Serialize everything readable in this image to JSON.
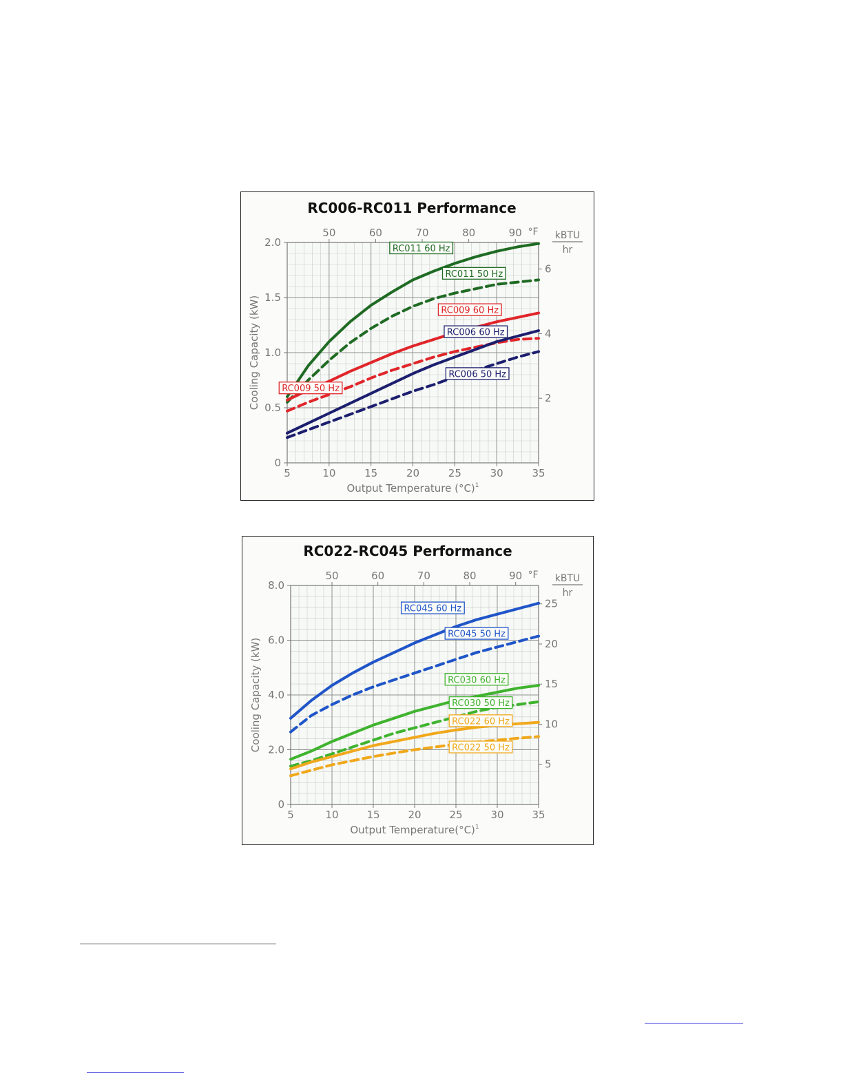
{
  "chart_data": [
    {
      "type": "line",
      "title": "RC006-RC011 Performance",
      "xlabel": "Output Temperature (°C)",
      "xlabel_superscript": "1",
      "ylabel": "Cooling Capacity (kW)",
      "xlim": [
        5,
        35
      ],
      "ylim": [
        0,
        2.0
      ],
      "x_ticks": [
        5,
        10,
        15,
        20,
        25,
        30,
        35
      ],
      "y_ticks": [
        0,
        0.5,
        1.0,
        1.5,
        2.0
      ],
      "y_tick_labels": [
        "0",
        "0.5",
        "1.0",
        "1.5",
        "2.0"
      ],
      "top_axis": {
        "unit": "°F",
        "ticks": [
          50,
          60,
          70,
          80,
          90
        ]
      },
      "right_axis": {
        "unit_top": "kBTU",
        "unit_bottom": "hr",
        "ticks": [
          2,
          4,
          6
        ]
      },
      "grid": true,
      "x": [
        5,
        7.5,
        10,
        12.5,
        15,
        17.5,
        20,
        22.5,
        25,
        27.5,
        30,
        32.5,
        35
      ],
      "series": [
        {
          "name": "RC011 60 Hz",
          "style": "solid",
          "color": "#1f6b24",
          "values": [
            0.6,
            0.88,
            1.1,
            1.28,
            1.43,
            1.55,
            1.66,
            1.74,
            1.81,
            1.87,
            1.92,
            1.96,
            1.99
          ]
        },
        {
          "name": "RC011 50 Hz",
          "style": "dashed",
          "color": "#1f6b24",
          "values": [
            0.55,
            0.75,
            0.93,
            1.09,
            1.22,
            1.33,
            1.42,
            1.49,
            1.54,
            1.58,
            1.62,
            1.64,
            1.66
          ]
        },
        {
          "name": "RC009 60 Hz",
          "style": "solid",
          "color": "#e0262a",
          "values": [
            0.57,
            0.66,
            0.74,
            0.83,
            0.91,
            0.99,
            1.06,
            1.12,
            1.18,
            1.23,
            1.28,
            1.32,
            1.36
          ]
        },
        {
          "name": "RC009 50 Hz",
          "style": "dashed",
          "color": "#e0262a",
          "values": [
            0.47,
            0.55,
            0.62,
            0.69,
            0.77,
            0.84,
            0.9,
            0.96,
            1.01,
            1.05,
            1.09,
            1.12,
            1.13
          ]
        },
        {
          "name": "RC006 60 Hz",
          "style": "solid",
          "color": "#1c1f6e",
          "values": [
            0.27,
            0.36,
            0.45,
            0.54,
            0.63,
            0.72,
            0.81,
            0.89,
            0.96,
            1.03,
            1.1,
            1.15,
            1.2
          ]
        },
        {
          "name": "RC006 50 Hz",
          "style": "dashed",
          "color": "#1c1f6e",
          "values": [
            0.23,
            0.3,
            0.37,
            0.44,
            0.51,
            0.58,
            0.65,
            0.71,
            0.78,
            0.84,
            0.9,
            0.96,
            1.01
          ]
        }
      ],
      "labels": [
        {
          "series": "RC011 60 Hz",
          "x": 21.0,
          "y": 1.95
        },
        {
          "series": "RC011 50 Hz",
          "x": 27.3,
          "y": 1.72
        },
        {
          "series": "RC009 60 Hz",
          "x": 26.8,
          "y": 1.39
        },
        {
          "series": "RC006 60 Hz",
          "x": 27.5,
          "y": 1.19
        },
        {
          "series": "RC006 50 Hz",
          "x": 27.7,
          "y": 0.81
        },
        {
          "series": "RC009 50 Hz",
          "x": 7.8,
          "y": 0.68
        }
      ]
    },
    {
      "type": "line",
      "title": "RC022-RC045 Performance",
      "xlabel": "Output Temperature(°C)",
      "xlabel_superscript": "1",
      "ylabel": "Cooling Capacity (kW)",
      "xlim": [
        5,
        35
      ],
      "ylim": [
        0,
        8.0
      ],
      "x_ticks": [
        5,
        10,
        15,
        20,
        25,
        30,
        35
      ],
      "y_ticks": [
        0,
        2.0,
        4.0,
        6.0,
        8.0
      ],
      "y_tick_labels": [
        "0",
        "2.0",
        "4.0",
        "6.0",
        "8.0"
      ],
      "top_axis": {
        "unit": "°F",
        "ticks": [
          50,
          60,
          70,
          80,
          90
        ]
      },
      "right_axis": {
        "unit_top": "kBTU",
        "unit_bottom": "hr",
        "ticks": [
          5,
          10,
          15,
          20,
          25
        ]
      },
      "grid": true,
      "x": [
        5,
        7.5,
        10,
        12.5,
        15,
        17.5,
        20,
        22.5,
        25,
        27.5,
        30,
        32.5,
        35
      ],
      "series": [
        {
          "name": "RC045 60 Hz",
          "style": "solid",
          "color": "#1f55c8",
          "values": [
            3.15,
            3.8,
            4.35,
            4.8,
            5.2,
            5.55,
            5.9,
            6.2,
            6.5,
            6.75,
            6.95,
            7.15,
            7.35
          ]
        },
        {
          "name": "RC045 50 Hz",
          "style": "dashed",
          "color": "#1f55c8",
          "values": [
            2.65,
            3.25,
            3.65,
            4.0,
            4.3,
            4.55,
            4.8,
            5.05,
            5.3,
            5.55,
            5.75,
            5.95,
            6.15
          ]
        },
        {
          "name": "RC030 60 Hz",
          "style": "solid",
          "color": "#3fb32e",
          "values": [
            1.65,
            1.95,
            2.3,
            2.6,
            2.9,
            3.15,
            3.4,
            3.6,
            3.8,
            3.95,
            4.1,
            4.25,
            4.35
          ]
        },
        {
          "name": "RC030 50 Hz",
          "style": "dashed",
          "color": "#3fb32e",
          "values": [
            1.4,
            1.6,
            1.85,
            2.1,
            2.35,
            2.6,
            2.8,
            3.0,
            3.2,
            3.4,
            3.55,
            3.65,
            3.75
          ]
        },
        {
          "name": "RC022 60 Hz",
          "style": "solid",
          "color": "#f0a81c",
          "values": [
            1.3,
            1.55,
            1.75,
            1.95,
            2.15,
            2.3,
            2.45,
            2.6,
            2.72,
            2.82,
            2.9,
            2.95,
            3.0
          ]
        },
        {
          "name": "RC022 50 Hz",
          "style": "dashed",
          "color": "#f0a81c",
          "values": [
            1.05,
            1.25,
            1.45,
            1.6,
            1.75,
            1.88,
            2.0,
            2.1,
            2.2,
            2.28,
            2.35,
            2.42,
            2.48
          ]
        }
      ],
      "labels": [
        {
          "series": "RC045 60 Hz",
          "x": 22.2,
          "y": 7.18
        },
        {
          "series": "RC045 50 Hz",
          "x": 27.5,
          "y": 6.25
        },
        {
          "series": "RC030 60 Hz",
          "x": 27.5,
          "y": 4.57
        },
        {
          "series": "RC030 50 Hz",
          "x": 28.0,
          "y": 3.72
        },
        {
          "series": "RC022 60 Hz",
          "x": 28.0,
          "y": 3.06
        },
        {
          "series": "RC022 50 Hz",
          "x": 28.0,
          "y": 2.1
        }
      ]
    }
  ]
}
